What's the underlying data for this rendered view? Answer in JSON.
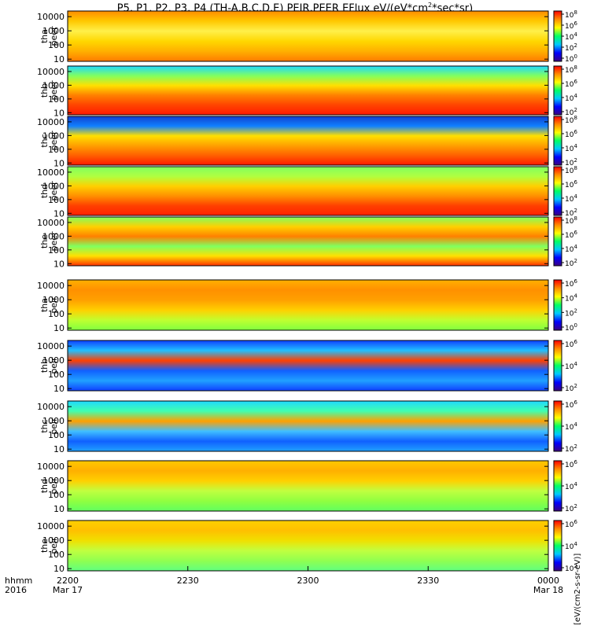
{
  "title": "P5, P1, P2, P3, P4 (TH-A,B,C,D,E) PEIR,PEER EFlux eV/(eV*cm^2*sec*sr)",
  "title_parts": {
    "main": "P5, P1, P2, P3, P4 (TH-A,B,C,D,E) PEIR,PEER EFlux eV/(eV*cm",
    "sup": "2",
    "end": "*sec*sr)"
  },
  "time_axis": {
    "corner_top": "hhmm",
    "corner_bottom": "2016",
    "ticks": [
      {
        "time": "2200",
        "date": "Mar 17",
        "minutes": 0
      },
      {
        "time": "2230",
        "date": "",
        "minutes": 30
      },
      {
        "time": "2300",
        "date": "",
        "minutes": 60
      },
      {
        "time": "2330",
        "date": "",
        "minutes": 90
      },
      {
        "time": "0000",
        "date": "Mar 18",
        "minutes": 120
      }
    ]
  },
  "colorbar_label": "[eV/(cm2-s-sr-eV)]",
  "chart_data": {
    "type": "heatmap",
    "x_unit": "minutes after 2016-03-17 22:00",
    "x_range": [
      0,
      120
    ],
    "y_scale": "log",
    "ylim": [
      7,
      25000
    ],
    "y_ticks": [
      "10",
      "100",
      "1000",
      "10000"
    ],
    "colorscale": [
      "#3c0080",
      "#0000ff",
      "#00c8ff",
      "#00ff64",
      "#ffff00",
      "#ff8c00",
      "#ff0000"
    ],
    "panels": [
      {
        "probe": "tha",
        "species": "peer",
        "ylabel": [
          "tha",
          "peer"
        ],
        "cb_ticks": [
          "10^8",
          "10^6",
          "10^4",
          "10^2",
          "10^0"
        ]
      },
      {
        "probe": "thb",
        "species": "peer",
        "ylabel": [
          "thb",
          "peer"
        ],
        "cb_ticks": [
          "10^8",
          "10^6",
          "10^4",
          "10^2"
        ]
      },
      {
        "probe": "thc",
        "species": "peer",
        "ylabel": [
          "thc",
          "peer"
        ],
        "cb_ticks": [
          "10^8",
          "10^6",
          "10^4",
          "10^2"
        ]
      },
      {
        "probe": "thd",
        "species": "peer",
        "ylabel": [
          "thd",
          "peer"
        ],
        "cb_ticks": [
          "10^8",
          "10^6",
          "10^4",
          "10^2"
        ]
      },
      {
        "probe": "the",
        "species": "peer",
        "ylabel": [
          "the",
          "peer"
        ],
        "cb_ticks": [
          "10^8",
          "10^6",
          "10^4",
          "10^2"
        ]
      },
      {
        "probe": "tha",
        "species": "peir",
        "ylabel": [
          "tha",
          "peir"
        ],
        "cb_ticks": [
          "10^6",
          "10^4",
          "10^2",
          "10^0"
        ]
      },
      {
        "probe": "thb",
        "species": "peir",
        "ylabel": [
          "thb",
          "peir"
        ],
        "cb_ticks": [
          "10^6",
          "10^4",
          "10^2"
        ]
      },
      {
        "probe": "thc",
        "species": "peir",
        "ylabel": [
          "thc",
          "peir"
        ],
        "cb_ticks": [
          "10^6",
          "10^4",
          "10^2"
        ]
      },
      {
        "probe": "thd",
        "species": "peir",
        "ylabel": [
          "thd",
          "peir"
        ],
        "cb_ticks": [
          "10^6",
          "10^4",
          "10^2"
        ]
      },
      {
        "probe": "the",
        "species": "peir",
        "ylabel": [
          "the",
          "peir"
        ],
        "cb_ticks": [
          "10^6",
          "10^4",
          "10^2"
        ]
      }
    ]
  }
}
